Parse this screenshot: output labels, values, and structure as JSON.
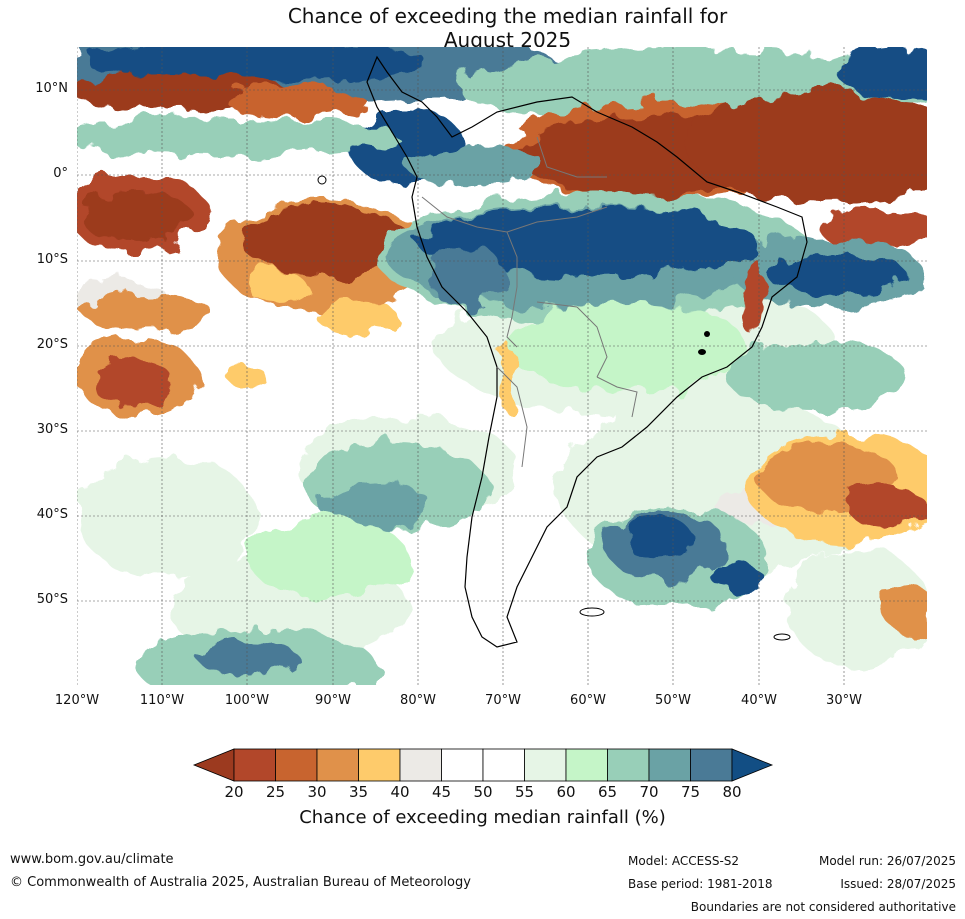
{
  "title_line1": "Chance of exceeding the median rainfall for",
  "title_line2": "August 2025",
  "lat_labels": [
    "10°N",
    "0°",
    "10°S",
    "20°S",
    "30°S",
    "40°S",
    "50°S"
  ],
  "lon_labels": [
    "120°W",
    "110°W",
    "100°W",
    "90°W",
    "80°W",
    "70°W",
    "60°W",
    "50°W",
    "40°W",
    "30°W"
  ],
  "colorbar": {
    "ticks": [
      "20",
      "25",
      "30",
      "35",
      "40",
      "45",
      "50",
      "55",
      "60",
      "65",
      "70",
      "75",
      "80"
    ],
    "colors": [
      "#9c3a1f",
      "#b2472a",
      "#c8642f",
      "#e0914a",
      "#fecb6b",
      "#eceae6",
      "#ffffff",
      "#ffffff",
      "#e6f5e6",
      "#c5f5c8",
      "#98cfb8",
      "#6aa2a5",
      "#4a7a96",
      "#124e84"
    ],
    "label": "Chance of exceeding median rainfall (%)"
  },
  "footer": {
    "website": "www.bom.gov.au/climate",
    "copyright": "© Commonwealth of Australia 2025, Australian Bureau of Meteorology",
    "model": "Model: ACCESS-S2",
    "base_period": "Base period: 1981-2018",
    "model_run": "Model run: 26/07/2025",
    "issued": "Issued: 28/07/2025",
    "disclaimer": "Boundaries are not considered authoritative"
  }
}
